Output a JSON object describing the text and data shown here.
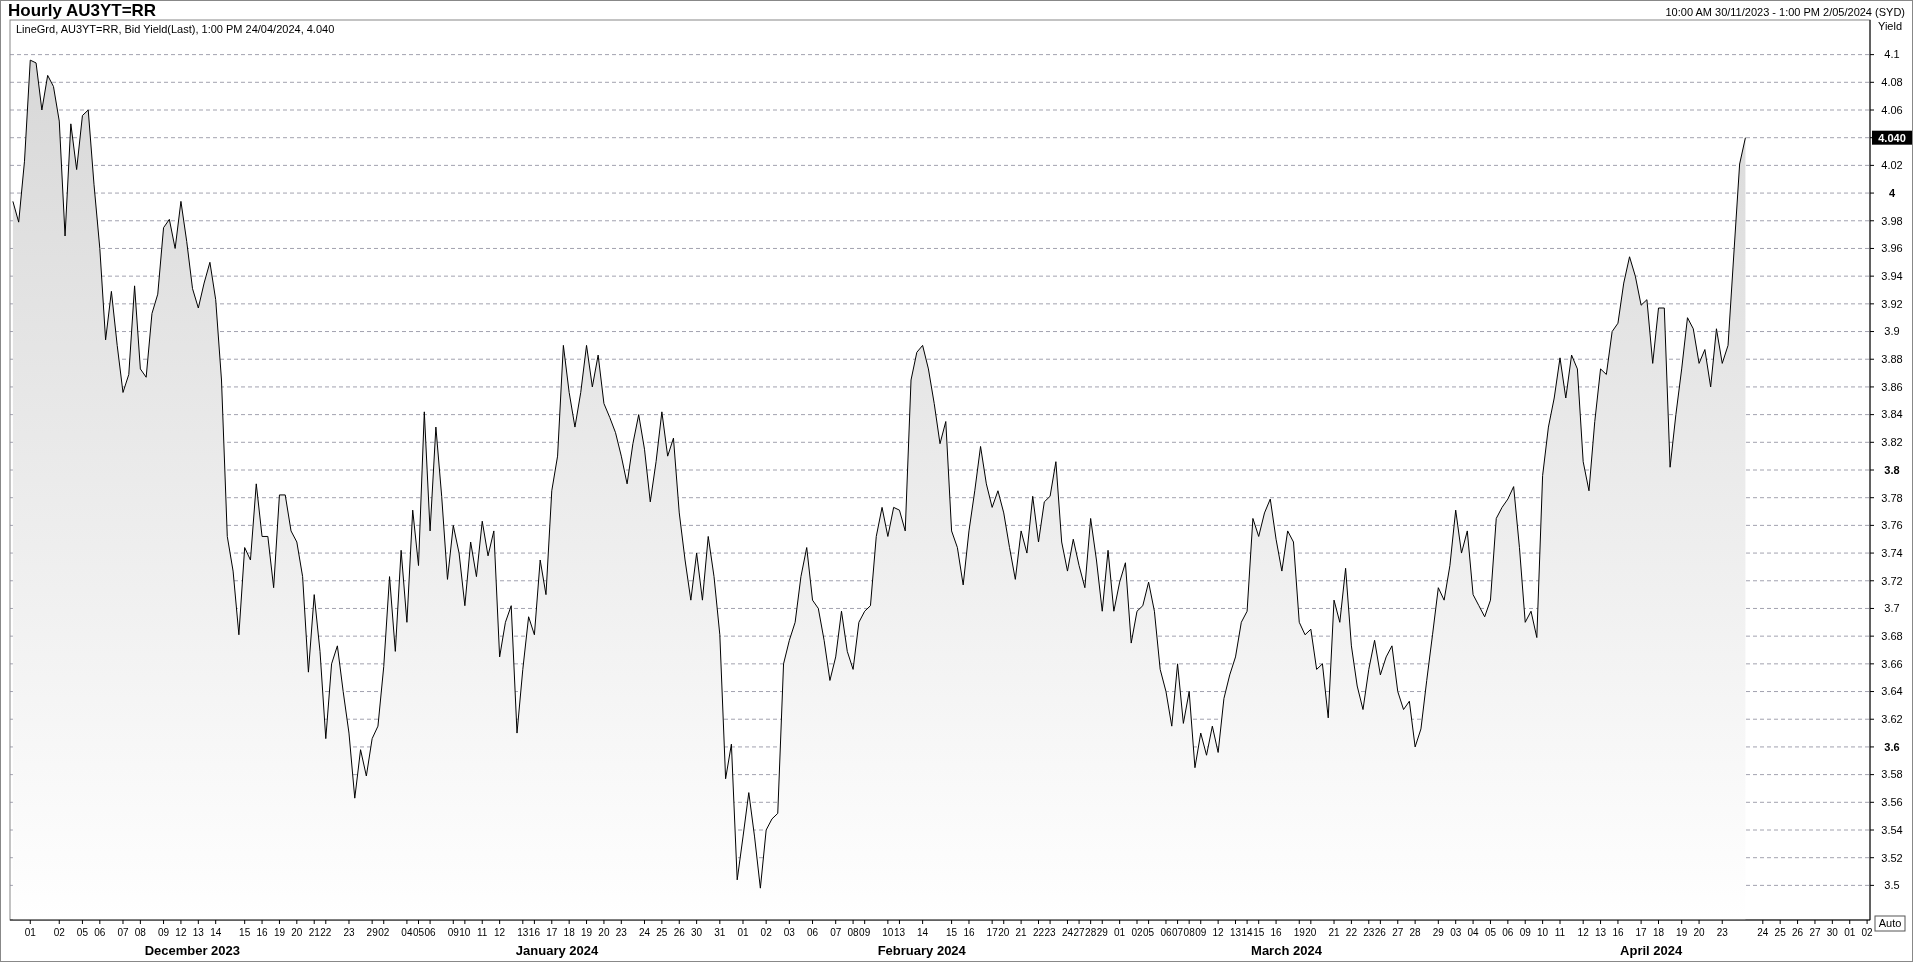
{
  "chart_data": {
    "type": "area",
    "title": "Hourly AU3YT=RR",
    "subtitle": "LineGrd, AU3YT=RR, Bid Yield(Last), 1:00 PM 24/04/2024, 4.040",
    "ylabel": "Yield",
    "annotations": [
      "10:00 AM 30/11/2023 - 1:00 PM 2/05/2024 (SYD)",
      "December 2023",
      "January 2024",
      "February 2024",
      "March 2024",
      "April 2024",
      "Auto"
    ],
    "grid": "y",
    "line_style": "solid",
    "ylim": [
      3.475,
      4.125
    ],
    "yticks": [
      3.5,
      3.52,
      3.54,
      3.56,
      3.58,
      3.6,
      3.62,
      3.64,
      3.66,
      3.68,
      3.7,
      3.72,
      3.74,
      3.76,
      3.78,
      3.8,
      3.82,
      3.84,
      3.86,
      3.88,
      3.9,
      3.92,
      3.94,
      3.96,
      3.98,
      4,
      4.02,
      {
        "value": 4.04,
        "label": "4.040"
      },
      4.06,
      4.08,
      4.1
    ],
    "categories": [
      null,
      null,
      null,
      "01",
      null,
      null,
      null,
      null,
      "02",
      null,
      null,
      null,
      "05",
      null,
      null,
      "06",
      null,
      null,
      null,
      "07",
      null,
      null,
      "08",
      null,
      null,
      null,
      "09",
      null,
      null,
      "12",
      null,
      null,
      "13",
      null,
      null,
      "14",
      null,
      null,
      null,
      null,
      "15",
      null,
      null,
      "16",
      null,
      null,
      "19",
      null,
      null,
      "20",
      null,
      null,
      "21",
      null,
      "22",
      null,
      null,
      null,
      "23",
      null,
      null,
      null,
      "29",
      null,
      "02",
      null,
      null,
      null,
      "04",
      null,
      "05",
      null,
      "06",
      null,
      null,
      null,
      "09",
      null,
      "10",
      null,
      null,
      "11",
      null,
      null,
      "12",
      null,
      null,
      null,
      "13",
      null,
      "16",
      null,
      null,
      "17",
      null,
      null,
      "18",
      null,
      null,
      "19",
      null,
      null,
      "20",
      null,
      null,
      "23",
      null,
      null,
      null,
      "24",
      null,
      null,
      "25",
      null,
      null,
      "26",
      null,
      null,
      "30",
      null,
      null,
      null,
      "31",
      null,
      null,
      null,
      "01",
      null,
      null,
      null,
      "02",
      null,
      null,
      null,
      "03",
      null,
      null,
      null,
      "06",
      null,
      null,
      null,
      "07",
      null,
      null,
      "08",
      null,
      "09",
      null,
      null,
      null,
      "10",
      null,
      "13",
      null,
      null,
      null,
      "14",
      null,
      null,
      null,
      null,
      "15",
      null,
      null,
      "16",
      null,
      null,
      null,
      "17",
      null,
      "20",
      null,
      null,
      "21",
      null,
      null,
      "22",
      null,
      "23",
      null,
      null,
      "24",
      null,
      "27",
      null,
      "28",
      null,
      "29",
      null,
      null,
      "01",
      null,
      null,
      "02",
      null,
      "05",
      null,
      null,
      "06",
      null,
      "07",
      null,
      "08",
      null,
      "09",
      null,
      null,
      "12",
      null,
      null,
      "13",
      null,
      "14",
      null,
      "15",
      null,
      null,
      "16",
      null,
      null,
      null,
      "19",
      null,
      "20",
      null,
      null,
      null,
      "21",
      null,
      null,
      "22",
      null,
      null,
      "23",
      null,
      "26",
      null,
      null,
      "27",
      null,
      null,
      "28",
      null,
      null,
      null,
      "29",
      null,
      null,
      "03",
      null,
      null,
      "04",
      null,
      null,
      "05",
      null,
      null,
      "06",
      null,
      null,
      "09",
      null,
      null,
      "10",
      null,
      null,
      "11",
      null,
      null,
      null,
      "12",
      null,
      null,
      "13",
      null,
      null,
      "16",
      null,
      null,
      null,
      "17",
      null,
      null,
      "18",
      null,
      null,
      null,
      "19",
      null,
      null,
      "20",
      null,
      null,
      null,
      "23",
      null,
      null,
      null,
      null,
      null,
      null,
      "24",
      null,
      null,
      "25",
      null,
      null,
      "26",
      null,
      null,
      "27",
      null,
      null,
      "30",
      null,
      null,
      "01",
      null,
      null,
      "02"
    ],
    "series": [
      {
        "color": "#000000",
        "values": [
          3.994,
          3.979,
          4.023,
          4.096,
          4.094,
          4.06,
          4.085,
          4.077,
          4.052,
          3.969,
          4.05,
          4.017,
          4.056,
          4.06,
          4.006,
          3.96,
          3.894,
          3.929,
          3.89,
          3.856,
          3.869,
          3.933,
          3.873,
          3.867,
          3.913,
          3.927,
          3.975,
          3.981,
          3.96,
          3.994,
          3.965,
          3.931,
          3.917,
          3.935,
          3.95,
          3.923,
          3.865,
          3.752,
          3.727,
          3.681,
          3.744,
          3.735,
          3.79,
          3.752,
          3.752,
          3.715,
          3.782,
          3.782,
          3.756,
          3.748,
          3.723,
          3.654,
          3.71,
          3.669,
          3.606,
          3.66,
          3.673,
          3.64,
          3.61,
          3.563,
          3.598,
          3.579,
          3.606,
          3.615,
          3.658,
          3.723,
          3.669,
          3.742,
          3.69,
          3.771,
          3.731,
          3.842,
          3.756,
          3.831,
          3.781,
          3.721,
          3.76,
          3.74,
          3.702,
          3.748,
          3.723,
          3.763,
          3.738,
          3.756,
          3.665,
          3.69,
          3.702,
          3.61,
          3.656,
          3.694,
          3.681,
          3.735,
          3.71,
          3.785,
          3.81,
          3.89,
          3.856,
          3.831,
          3.856,
          3.89,
          3.86,
          3.883,
          3.848,
          3.838,
          3.827,
          3.81,
          3.79,
          3.819,
          3.84,
          3.815,
          3.777,
          3.806,
          3.842,
          3.81,
          3.823,
          3.769,
          3.735,
          3.706,
          3.74,
          3.706,
          3.752,
          3.723,
          3.681,
          3.577,
          3.602,
          3.504,
          3.535,
          3.567,
          3.535,
          3.498,
          3.54,
          3.548,
          3.552,
          3.66,
          3.677,
          3.69,
          3.723,
          3.744,
          3.706,
          3.7,
          3.677,
          3.648,
          3.665,
          3.698,
          3.669,
          3.656,
          3.69,
          3.698,
          3.702,
          3.752,
          3.773,
          3.752,
          3.773,
          3.771,
          3.756,
          3.865,
          3.885,
          3.89,
          3.873,
          3.848,
          3.819,
          3.835,
          3.756,
          3.744,
          3.717,
          3.756,
          3.785,
          3.817,
          3.79,
          3.773,
          3.785,
          3.769,
          3.744,
          3.721,
          3.756,
          3.74,
          3.781,
          3.748,
          3.777,
          3.781,
          3.806,
          3.748,
          3.727,
          3.75,
          3.731,
          3.715,
          3.765,
          3.735,
          3.698,
          3.742,
          3.698,
          3.719,
          3.733,
          3.675,
          3.698,
          3.702,
          3.719,
          3.698,
          3.656,
          3.64,
          3.615,
          3.66,
          3.617,
          3.64,
          3.585,
          3.61,
          3.594,
          3.615,
          3.596,
          3.635,
          3.652,
          3.665,
          3.69,
          3.698,
          3.765,
          3.752,
          3.769,
          3.779,
          3.75,
          3.727,
          3.756,
          3.748,
          3.69,
          3.681,
          3.685,
          3.656,
          3.66,
          3.621,
          3.706,
          3.69,
          3.729,
          3.673,
          3.644,
          3.627,
          3.656,
          3.677,
          3.652,
          3.665,
          3.673,
          3.64,
          3.627,
          3.633,
          3.6,
          3.613,
          3.648,
          3.681,
          3.715,
          3.706,
          3.731,
          3.771,
          3.74,
          3.756,
          3.71,
          3.702,
          3.694,
          3.706,
          3.765,
          3.773,
          3.779,
          3.788,
          3.744,
          3.69,
          3.698,
          3.679,
          3.796,
          3.831,
          3.852,
          3.881,
          3.852,
          3.883,
          3.873,
          3.806,
          3.785,
          3.835,
          3.873,
          3.869,
          3.9,
          3.906,
          3.935,
          3.954,
          3.94,
          3.919,
          3.923,
          3.877,
          3.917,
          3.917,
          3.802,
          3.84,
          3.873,
          3.91,
          3.902,
          3.877,
          3.887,
          3.86,
          3.902,
          3.877,
          3.89,
          3.956,
          4.021,
          4.04,
          null,
          null,
          null,
          null,
          null,
          null,
          null,
          null,
          null,
          null,
          null,
          null,
          null,
          null,
          null,
          null,
          null,
          null,
          null,
          null,
          null
        ]
      }
    ]
  }
}
